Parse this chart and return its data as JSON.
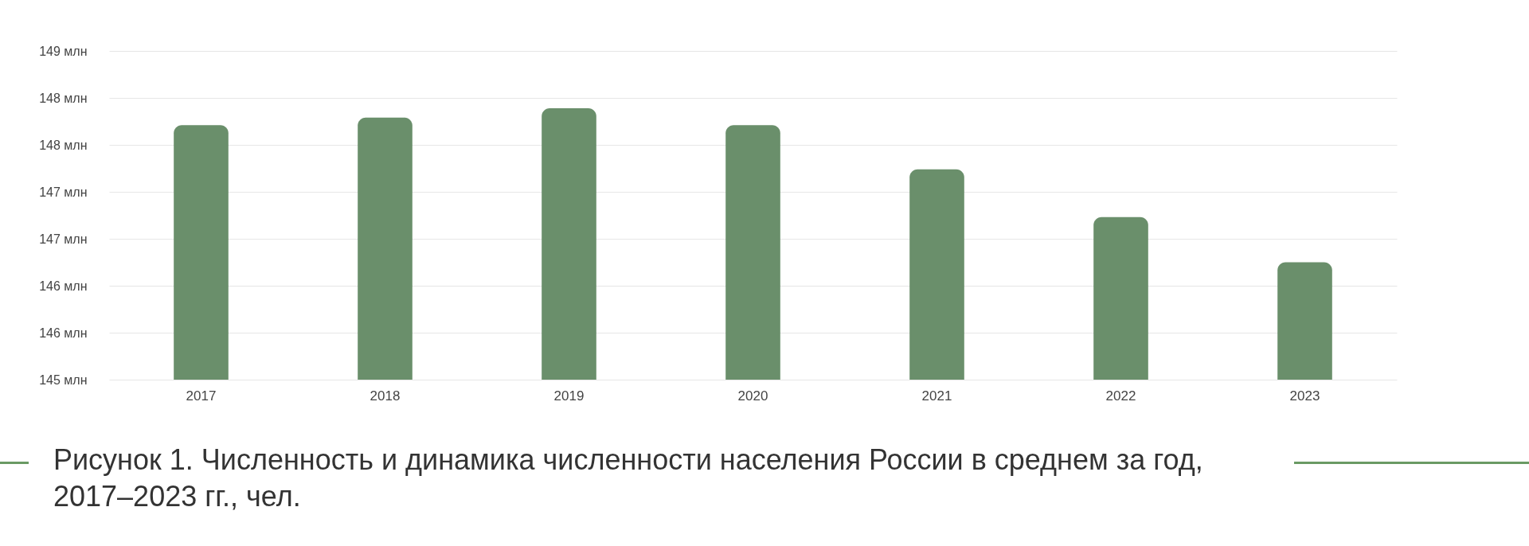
{
  "chart_data": {
    "type": "bar",
    "title": "Рисунок 1. Численность и динамика численности населения России в среднем за год, 2017–2023 гг., чел.",
    "categories": [
      "2017",
      "2018",
      "2019",
      "2020",
      "2021",
      "2022",
      "2023"
    ],
    "values": [
      148.21,
      148.29,
      148.39,
      148.21,
      147.74,
      147.23,
      146.75
    ],
    "color": "#6a8f6b",
    "ylim": [
      145.5,
      149
    ],
    "yticks": [
      {
        "value": 145.5,
        "label": "145 млн"
      },
      {
        "value": 146,
        "label": "146 млн"
      },
      {
        "value": 146.5,
        "label": "146 млн"
      },
      {
        "value": 147,
        "label": "147 млн"
      },
      {
        "value": 147.5,
        "label": "147 млн"
      },
      {
        "value": 148,
        "label": "148 млн"
      },
      {
        "value": 148.5,
        "label": "148 млн"
      },
      {
        "value": 149,
        "label": "149 млн"
      }
    ],
    "grid": "y"
  }
}
